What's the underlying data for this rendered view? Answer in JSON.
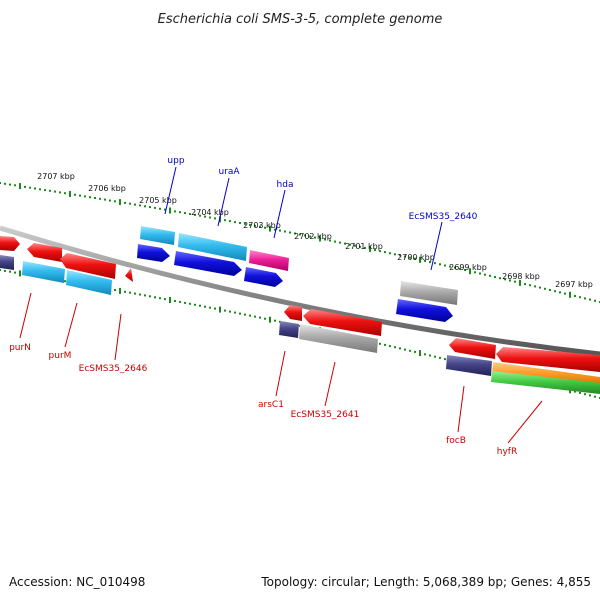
{
  "title": "Escherichia coli SMS-3-5, complete genome",
  "footer": {
    "accession": "Accession: NC_010498",
    "summary": "Topology: circular; Length: 5,068,389 bp; Genes: 4,855"
  },
  "scale": {
    "ticks": [
      "2707 kbp",
      "2706 kbp",
      "2705 kbp",
      "2704 kbp",
      "2703 kbp",
      "2702 kbp",
      "2701 kbp",
      "2700 kbp",
      "2699 kbp",
      "2698 kbp",
      "2697 kbp"
    ]
  },
  "labels_top": [
    {
      "name": "upp"
    },
    {
      "name": "uraA"
    },
    {
      "name": "hda"
    },
    {
      "name": "EcSMS35_2640"
    }
  ],
  "labels_bottom": [
    {
      "name": "purN"
    },
    {
      "name": "purM"
    },
    {
      "name": "EcSMS35_2646"
    },
    {
      "name": "arsC1"
    },
    {
      "name": "EcSMS35_2641"
    },
    {
      "name": "focB"
    },
    {
      "name": "hyfR"
    }
  ],
  "colors": {
    "backbone": "#888888",
    "tick_green": "#1a8a1a",
    "red": "#ee1111",
    "cyan": "#33bbee",
    "blue": "#1111dd",
    "navy": "#444488",
    "magenta": "#ee2299",
    "gray": "#aaaaaa",
    "orange": "#ff9922",
    "green": "#44cc44"
  }
}
